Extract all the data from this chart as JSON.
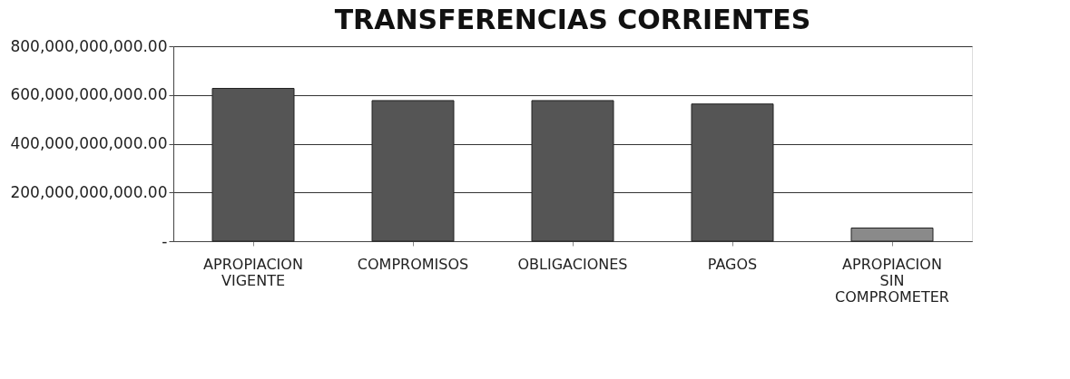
{
  "chart_data": {
    "type": "bar",
    "title": "TRANSFERENCIAS CORRIENTES",
    "categories": [
      "APROPIACION VIGENTE",
      "COMPROMISOS",
      "OBLIGACIONES",
      "PAGOS",
      "APROPIACION SIN COMPROMETER"
    ],
    "values": [
      627000000000,
      577000000000,
      577000000000,
      563000000000,
      54000000000
    ],
    "colors": [
      "#555555",
      "#555555",
      "#555555",
      "#555555",
      "#8a8a8a"
    ],
    "ylim": [
      0,
      800000000000
    ],
    "yticks": [
      {
        "value": 0,
        "label": "-"
      },
      {
        "value": 200000000000,
        "label": "200,000,000,000.00"
      },
      {
        "value": 400000000000,
        "label": "400,000,000,000.00"
      },
      {
        "value": 600000000000,
        "label": "600,000,000,000.00"
      },
      {
        "value": 800000000000,
        "label": "800,000,000,000.00"
      }
    ],
    "grid": "y"
  }
}
